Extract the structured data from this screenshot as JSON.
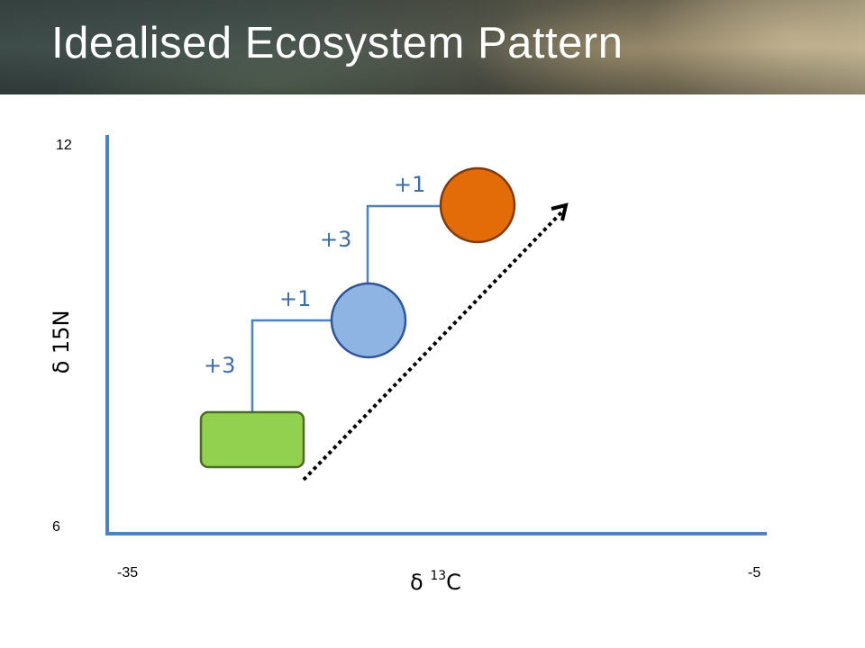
{
  "slide": {
    "title": "Idealised Ecosystem Pattern"
  },
  "axes": {
    "y_title": "δ 15N",
    "y_min_label": "6",
    "y_max_label": "12",
    "x_title_prefix": "δ ",
    "x_title_superscript": "13",
    "x_title_suffix": "C",
    "x_min_label": "-35",
    "x_max_label": "-5"
  },
  "steps": [
    {
      "label": "+3"
    },
    {
      "label": "+1"
    },
    {
      "label": "+3"
    },
    {
      "label": "+1"
    }
  ],
  "colors": {
    "axis": "#4f81bd",
    "connector": "#4f81bd",
    "step_text": "#3f6e9e",
    "producer_fill": "#92d050",
    "producer_stroke": "#4e6b28",
    "primary_consumer_fill": "#8eb4e3",
    "primary_consumer_stroke": "#2f5597",
    "secondary_consumer_fill": "#e36c09",
    "secondary_consumer_stroke": "#7f3a12",
    "trend_arrow": "#000000"
  }
}
